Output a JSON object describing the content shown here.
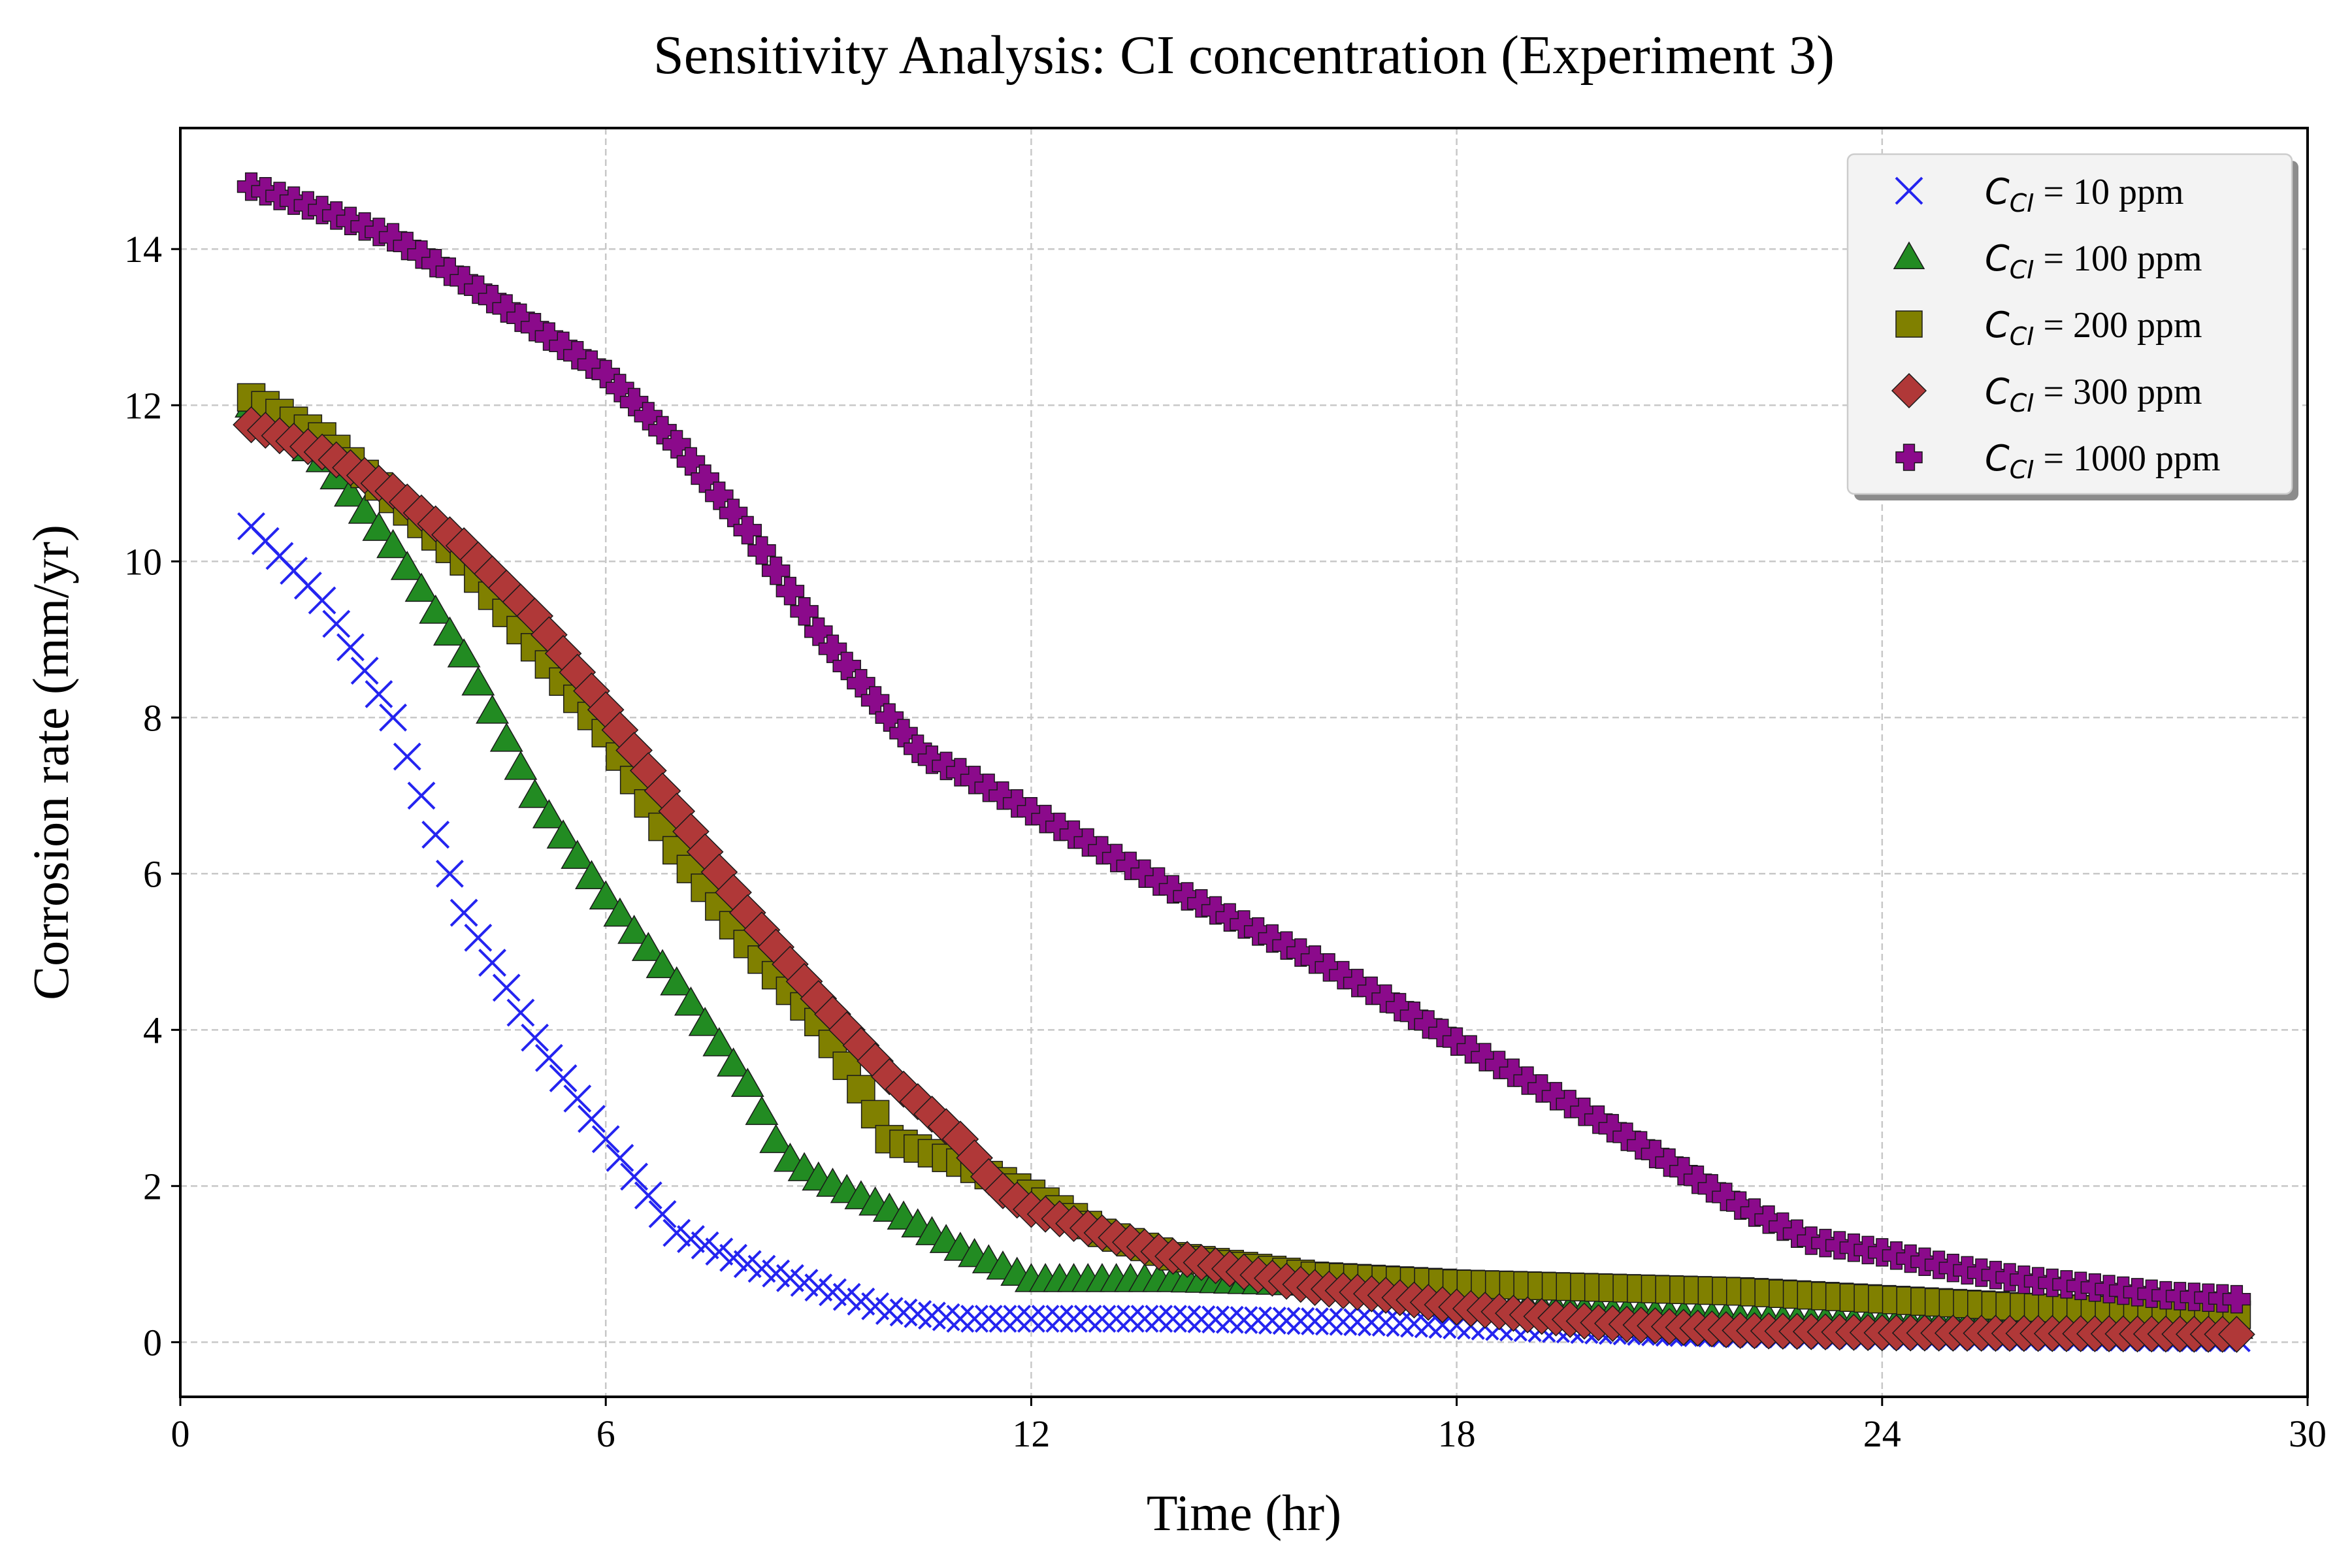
{
  "chart_data": {
    "type": "scatter",
    "title": "Sensitivity Analysis: CI concentration (Experiment 3)",
    "xlabel": "Time (hr)",
    "ylabel": "Corrosion rate (mm/yr)",
    "xlim": [
      0,
      30
    ],
    "ylim": [
      -0.7,
      15.55
    ],
    "xticks": [
      0,
      6,
      12,
      18,
      24,
      30
    ],
    "yticks": [
      0,
      2,
      4,
      6,
      8,
      10,
      12,
      14
    ],
    "grid": true,
    "legend_position": "top-right",
    "x_range": [
      1,
      29
    ],
    "x_step": 0.2,
    "series": [
      {
        "name_prefix": "C",
        "name_sub": "CI",
        "name_suffix": " = 10 ppm",
        "marker": "x",
        "color": "#2424f0",
        "points": [
          [
            1,
            10.45
          ],
          [
            2,
            9.5
          ],
          [
            3,
            8.0
          ],
          [
            4,
            5.5
          ],
          [
            5,
            3.9
          ],
          [
            6,
            2.6
          ],
          [
            6.5,
            2.0
          ],
          [
            7,
            1.4
          ],
          [
            8,
            1.0
          ],
          [
            9,
            0.7
          ],
          [
            10,
            0.4
          ],
          [
            11,
            0.3
          ],
          [
            14,
            0.3
          ],
          [
            17,
            0.25
          ],
          [
            19,
            0.18
          ],
          [
            21,
            0.12
          ],
          [
            24,
            0.08
          ],
          [
            29,
            0.05
          ]
        ]
      },
      {
        "name_prefix": "C",
        "name_sub": "CI",
        "name_suffix": " = 100 ppm",
        "marker": "triangle",
        "color": "#228b22",
        "points": [
          [
            1,
            12.0
          ],
          [
            2,
            11.3
          ],
          [
            3,
            10.2
          ],
          [
            4,
            8.8
          ],
          [
            5,
            7.0
          ],
          [
            6,
            5.7
          ],
          [
            7,
            4.6
          ],
          [
            8,
            3.3
          ],
          [
            8.5,
            2.4
          ],
          [
            9,
            2.1
          ],
          [
            10,
            1.7
          ],
          [
            11,
            1.2
          ],
          [
            12,
            0.8
          ],
          [
            14,
            0.8
          ],
          [
            16,
            0.75
          ],
          [
            18,
            0.5
          ],
          [
            20,
            0.4
          ],
          [
            22,
            0.3
          ],
          [
            24,
            0.25
          ],
          [
            29,
            0.2
          ]
        ]
      },
      {
        "name_prefix": "C",
        "name_sub": "CI",
        "name_suffix": " = 200 ppm",
        "marker": "square",
        "color": "#808000",
        "points": [
          [
            1,
            12.1
          ],
          [
            2,
            11.6
          ],
          [
            3,
            10.8
          ],
          [
            4,
            10.0
          ],
          [
            5,
            8.9
          ],
          [
            6,
            7.8
          ],
          [
            7,
            6.3
          ],
          [
            8,
            5.1
          ],
          [
            9,
            4.1
          ],
          [
            9.5,
            3.4
          ],
          [
            10,
            2.6
          ],
          [
            11,
            2.3
          ],
          [
            12,
            1.9
          ],
          [
            13,
            1.4
          ],
          [
            14,
            1.1
          ],
          [
            16,
            0.85
          ],
          [
            18,
            0.75
          ],
          [
            20,
            0.7
          ],
          [
            22,
            0.65
          ],
          [
            24,
            0.55
          ],
          [
            26,
            0.45
          ],
          [
            29,
            0.35
          ]
        ]
      },
      {
        "name_prefix": "C",
        "name_sub": "CI",
        "name_suffix": " = 300 ppm",
        "marker": "diamond",
        "color": "#b03838",
        "points": [
          [
            1,
            11.75
          ],
          [
            2,
            11.4
          ],
          [
            3,
            10.9
          ],
          [
            4,
            10.2
          ],
          [
            5,
            9.3
          ],
          [
            6,
            8.1
          ],
          [
            7,
            6.8
          ],
          [
            8,
            5.5
          ],
          [
            9,
            4.4
          ],
          [
            10,
            3.4
          ],
          [
            11,
            2.6
          ],
          [
            11.5,
            2.0
          ],
          [
            12,
            1.7
          ],
          [
            13,
            1.4
          ],
          [
            14,
            1.1
          ],
          [
            15,
            0.9
          ],
          [
            16,
            0.7
          ],
          [
            17,
            0.6
          ],
          [
            18,
            0.45
          ],
          [
            19,
            0.35
          ],
          [
            20,
            0.25
          ],
          [
            22,
            0.15
          ],
          [
            24,
            0.12
          ],
          [
            29,
            0.1
          ]
        ]
      },
      {
        "name_prefix": "C",
        "name_sub": "CI",
        "name_suffix": " = 1000 ppm",
        "marker": "plus",
        "color": "#8b0a8b",
        "points": [
          [
            1,
            14.8
          ],
          [
            2,
            14.5
          ],
          [
            3,
            14.15
          ],
          [
            4,
            13.6
          ],
          [
            5,
            13.0
          ],
          [
            6,
            12.4
          ],
          [
            7,
            11.5
          ],
          [
            8,
            10.4
          ],
          [
            9,
            9.1
          ],
          [
            10,
            8.0
          ],
          [
            10.5,
            7.5
          ],
          [
            11,
            7.3
          ],
          [
            12,
            6.8
          ],
          [
            13,
            6.3
          ],
          [
            14,
            5.8
          ],
          [
            15,
            5.35
          ],
          [
            16,
            4.9
          ],
          [
            17,
            4.4
          ],
          [
            18,
            3.85
          ],
          [
            19,
            3.35
          ],
          [
            20,
            2.85
          ],
          [
            21,
            2.3
          ],
          [
            22,
            1.75
          ],
          [
            23,
            1.3
          ],
          [
            24,
            1.15
          ],
          [
            25,
            0.95
          ],
          [
            26,
            0.8
          ],
          [
            27,
            0.7
          ],
          [
            28,
            0.6
          ],
          [
            29,
            0.55
          ]
        ]
      }
    ]
  }
}
